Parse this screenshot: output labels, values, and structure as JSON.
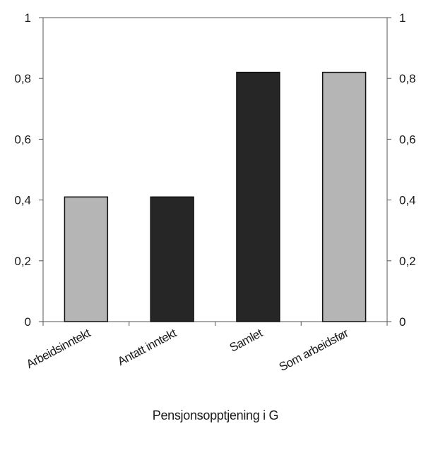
{
  "chart_data": {
    "type": "bar",
    "categories": [
      "Arbeidsinntekt",
      "Antatt inntekt",
      "Samlet",
      "Som arbeidsfør"
    ],
    "values": [
      0.41,
      0.41,
      0.82,
      0.82
    ],
    "bar_colors": [
      "#b5b5b5",
      "#262626",
      "#262626",
      "#b5b5b5"
    ],
    "xlabel": "Pensjonsopptjening i G",
    "ylim": [
      0,
      1
    ],
    "yticks": [
      "0",
      "0,2",
      "0,4",
      "0,6",
      "0,8",
      "1"
    ],
    "yticks_right": [
      "0",
      "0,2",
      "0,4",
      "0,6",
      "0,8",
      "1"
    ],
    "grid": false,
    "legend": "none"
  }
}
